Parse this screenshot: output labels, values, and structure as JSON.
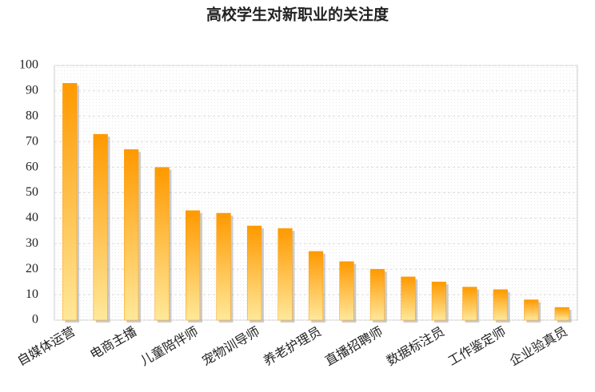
{
  "chart_data": {
    "type": "bar",
    "title": "高校学生对新职业的关注度",
    "categories": [
      "自媒体运营",
      null,
      "电商主播",
      null,
      "儿童陪伴师",
      null,
      "宠物训导师",
      null,
      "养老护理员",
      null,
      "直播招聘师",
      null,
      "数据标注员",
      null,
      "工作鉴定师",
      null,
      "企业验真员"
    ],
    "values": [
      93,
      73,
      67,
      60,
      43,
      42,
      37,
      36,
      27,
      23,
      20,
      17,
      15,
      13,
      12,
      8,
      5
    ],
    "color": "#ff9900",
    "ylim": [
      0,
      100
    ],
    "yticks": [
      0,
      10,
      20,
      30,
      40,
      50,
      60,
      70,
      80,
      90,
      100
    ],
    "grid": true
  }
}
